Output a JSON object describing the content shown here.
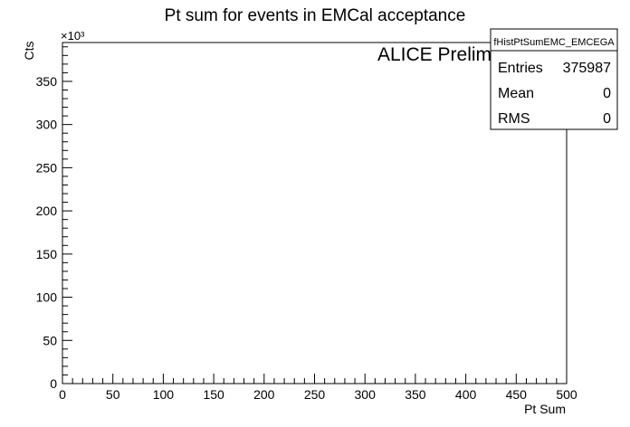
{
  "chart_data": {
    "type": "bar",
    "title": "Pt sum for events in EMCal acceptance",
    "xlabel": "Pt Sum",
    "ylabel": "Cts",
    "xlim": [
      0,
      500
    ],
    "ylim": [
      0,
      395
    ],
    "y_multiplier_label": "×10³",
    "x_ticks": [
      "0",
      "50",
      "100",
      "150",
      "200",
      "250",
      "300",
      "350",
      "400",
      "450",
      "500"
    ],
    "y_ticks": [
      "0",
      "50",
      "100",
      "150",
      "200",
      "250",
      "300",
      "350"
    ],
    "series": [
      {
        "name": "fHistPtSumEMC_EMCEGA",
        "values": []
      }
    ],
    "grid": false,
    "annotation": "ALICE Preliminary",
    "stats_box": {
      "name": "fHistPtSumEMC_EMCEGA",
      "rows": [
        {
          "label": "Entries",
          "value": "375987"
        },
        {
          "label": "Mean",
          "value": "0"
        },
        {
          "label": "RMS",
          "value": "0"
        }
      ]
    }
  }
}
